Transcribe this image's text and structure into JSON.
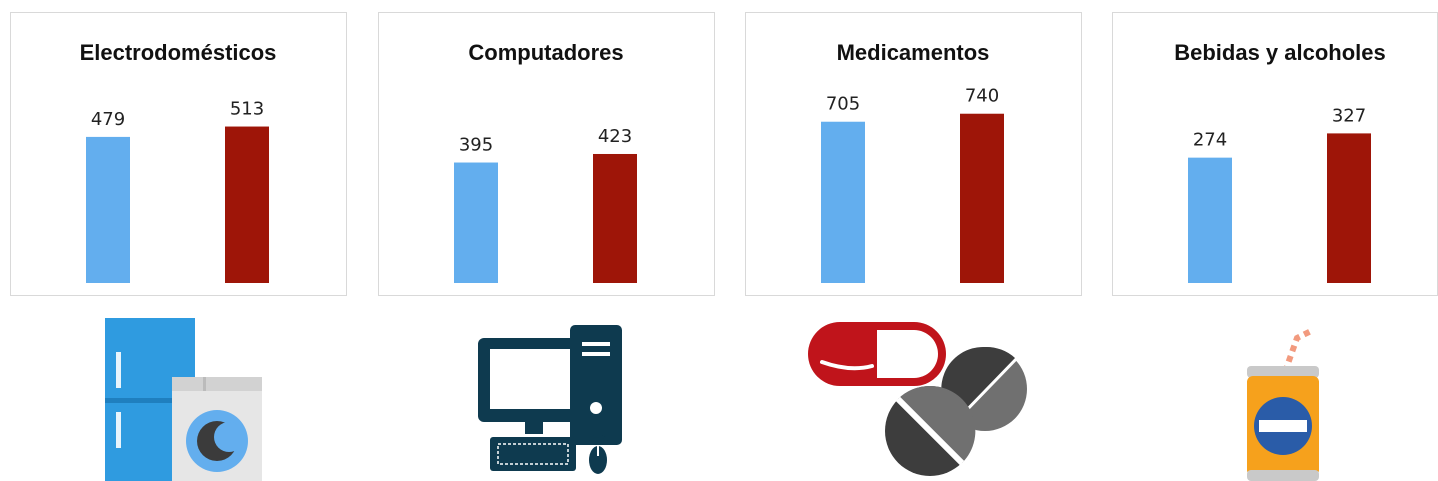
{
  "chart_data": [
    {
      "type": "bar",
      "title": "Electrodomésticos",
      "categories": [
        null,
        null
      ],
      "values": [
        479,
        513
      ],
      "colors": [
        "#63aeee",
        "#9e1508"
      ],
      "ylim": [
        0,
        600
      ],
      "grid": false
    },
    {
      "type": "bar",
      "title": "Computadores",
      "categories": [
        null,
        null
      ],
      "values": [
        395,
        423
      ],
      "colors": [
        "#63aeee",
        "#9e1508"
      ],
      "ylim": [
        0,
        600
      ],
      "grid": false
    },
    {
      "type": "bar",
      "title": "Medicamentos",
      "categories": [
        null,
        null
      ],
      "values": [
        705,
        740
      ],
      "colors": [
        "#63aeee",
        "#9e1508"
      ],
      "ylim": [
        0,
        800
      ],
      "grid": false
    },
    {
      "type": "bar",
      "title": "Bebidas y alcoholes",
      "categories": [
        null,
        null
      ],
      "values": [
        274,
        327
      ],
      "colors": [
        "#63aeee",
        "#9e1508"
      ],
      "ylim": [
        0,
        400
      ],
      "grid": false
    }
  ]
}
